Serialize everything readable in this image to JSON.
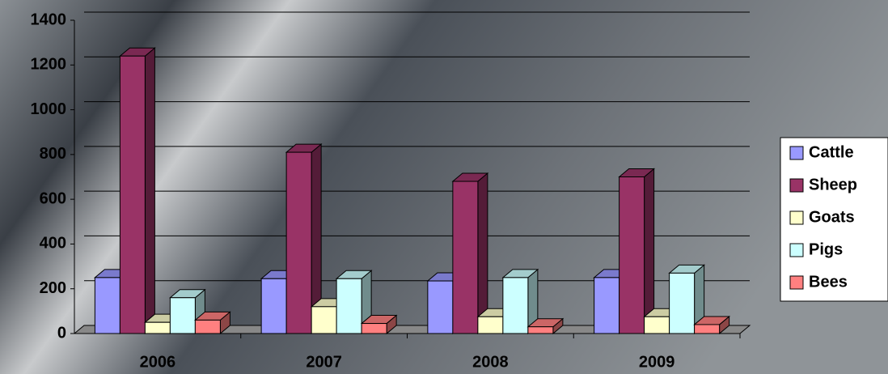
{
  "chart_data": {
    "type": "bar3d",
    "categories": [
      "2006",
      "2007",
      "2008",
      "2009"
    ],
    "series": [
      {
        "name": "Cattle",
        "color": "#9999ff",
        "values": [
          250,
          245,
          235,
          250
        ]
      },
      {
        "name": "Sheep",
        "color": "#993366",
        "values": [
          1240,
          810,
          680,
          700
        ]
      },
      {
        "name": "Goats",
        "color": "#ffffcc",
        "values": [
          50,
          120,
          75,
          75
        ]
      },
      {
        "name": "Pigs",
        "color": "#ccffff",
        "values": [
          160,
          245,
          250,
          270
        ]
      },
      {
        "name": "Bees",
        "color": "#ff8080",
        "values": [
          60,
          45,
          30,
          40
        ]
      }
    ],
    "ylim": [
      0,
      1400
    ],
    "yticks": [
      0,
      200,
      400,
      600,
      800,
      1000,
      1200,
      1400
    ],
    "grid": true,
    "legend": "right"
  }
}
